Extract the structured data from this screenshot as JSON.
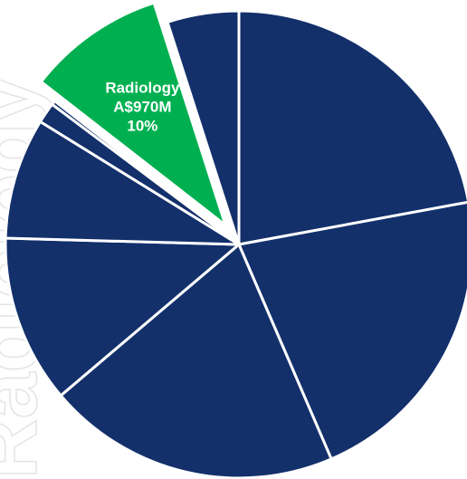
{
  "chart_data": {
    "type": "pie",
    "slices": [
      {
        "value": 23.2,
        "color": "#13306b"
      },
      {
        "value": 22.5,
        "color": "#13306b"
      },
      {
        "value": 21.3,
        "color": "#13306b"
      },
      {
        "value": 12.2,
        "color": "#13306b"
      },
      {
        "value": 8.8,
        "color": "#13306b"
      },
      {
        "value": 1.5,
        "color": "#13306b"
      },
      {
        "value": 0.3,
        "color": "#13306b"
      },
      {
        "value": 10.0,
        "color": "#00b050",
        "exploded": true,
        "label_lines": [
          "Radiology",
          "A$970M",
          "10%"
        ]
      },
      {
        "value": 5.2,
        "color": "#13306b"
      }
    ],
    "label_color": "#ffffff",
    "start": "12 o'clock",
    "direction": "clockwise"
  }
}
